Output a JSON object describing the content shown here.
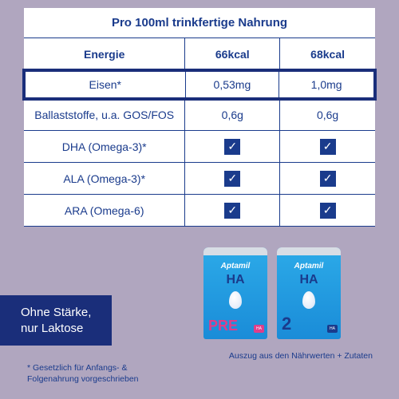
{
  "colors": {
    "background": "#b0a6bf",
    "primary": "#1a3b8c",
    "banner": "#1a2e7a",
    "product_gradient_top": "#2caae8",
    "product_gradient_bottom": "#1a8cd8",
    "variant_pink": "#df3d8a"
  },
  "table": {
    "header": "Pro 100ml trinkfertige Nahrung",
    "highlight_row_index": 1,
    "columns": {
      "label_width_pct": 46,
      "value_width_pct": 27
    },
    "rows": [
      {
        "label": "Energie",
        "v1": "66kcal",
        "v2": "68kcal",
        "title": true
      },
      {
        "label": "Eisen*",
        "v1": "0,53mg",
        "v2": "1,0mg"
      },
      {
        "label": "Ballaststoffe, u.a. GOS/FOS",
        "v1": "0,6g",
        "v2": "0,6g"
      },
      {
        "label": "DHA (Omega-3)*",
        "v1": "check",
        "v2": "check"
      },
      {
        "label": "ALA (Omega-3)*",
        "v1": "check",
        "v2": "check"
      },
      {
        "label": "ARA (Omega-6)",
        "v1": "check",
        "v2": "check"
      }
    ]
  },
  "products": [
    {
      "brand": "Aptamil",
      "line": "HA",
      "variant": "PRE",
      "variant_color": "#df3d8a",
      "tag_label": "HA",
      "tag_color": "#df3d8a"
    },
    {
      "brand": "Aptamil",
      "line": "HA",
      "variant": "2",
      "variant_color": "#1a3b8c",
      "tag_label": "HA",
      "tag_color": "#1a3b8c"
    }
  ],
  "banner": {
    "line1": "Ohne Stärke,",
    "line2": "nur Laktose"
  },
  "footnotes": {
    "left_line1": "* Gesetzlich für Anfangs- &",
    "left_line2": "  Folgenahrung vorgeschrieben",
    "right": "Auszug aus den Nährwerten + Zutaten"
  }
}
